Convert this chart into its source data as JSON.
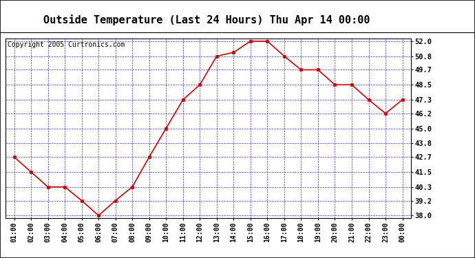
{
  "title": "Outside Temperature (Last 24 Hours) Thu Apr 14 00:00",
  "copyright": "Copyright 2005 Curtronics.com",
  "x_labels": [
    "01:00",
    "02:00",
    "03:00",
    "04:00",
    "05:00",
    "06:00",
    "07:00",
    "08:00",
    "09:00",
    "10:00",
    "11:00",
    "12:00",
    "13:00",
    "14:00",
    "15:00",
    "16:00",
    "17:00",
    "18:00",
    "19:00",
    "20:00",
    "21:00",
    "22:00",
    "23:00",
    "00:00"
  ],
  "y_values": [
    42.7,
    41.5,
    40.3,
    40.3,
    39.2,
    38.0,
    39.2,
    40.3,
    42.7,
    45.0,
    47.3,
    48.5,
    50.8,
    51.1,
    52.0,
    52.0,
    50.8,
    49.7,
    49.7,
    48.5,
    48.5,
    47.3,
    46.2,
    47.3
  ],
  "y_ticks": [
    38.0,
    39.2,
    40.3,
    41.5,
    42.7,
    43.8,
    45.0,
    46.2,
    47.3,
    48.5,
    49.7,
    50.8,
    52.0
  ],
  "y_min": 38.0,
  "y_max": 52.0,
  "line_color": "#cc0000",
  "marker_color": "#cc0000",
  "bg_color": "#ffffff",
  "plot_bg_color": "#ffffff",
  "grid_color": "#0000cc",
  "title_fontsize": 11,
  "copyright_fontsize": 7
}
